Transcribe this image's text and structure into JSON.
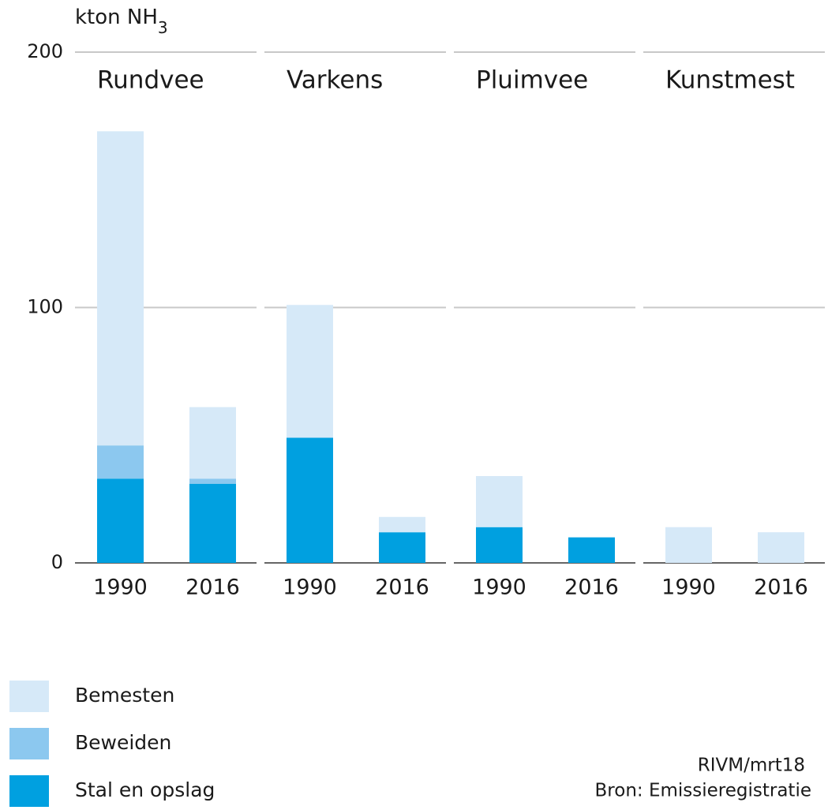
{
  "chart_data": {
    "type": "stacked_bar",
    "y_label": "kton NH",
    "y_label_subscript": "3",
    "groups": [
      "Rundvee",
      "Varkens",
      "Pluimvee",
      "Kunstmest"
    ],
    "categories": [
      "1990",
      "2016",
      "1990",
      "2016",
      "1990",
      "2016",
      "1990",
      "2016"
    ],
    "series": [
      {
        "name": "Bemesten",
        "color": "#d6e9f8",
        "values": [
          123,
          28,
          52,
          6,
          20,
          0,
          14,
          12
        ]
      },
      {
        "name": "Beweiden",
        "color": "#8cc8ef",
        "values": [
          13,
          2,
          0,
          0,
          0,
          0,
          0,
          0
        ]
      },
      {
        "name": "Stal en opslag",
        "color": "#00a0e0",
        "values": [
          33,
          31,
          49,
          12,
          14,
          10,
          0,
          0
        ]
      }
    ],
    "ylim": [
      0,
      200
    ],
    "yticks": [
      0,
      100,
      200
    ],
    "grid": true,
    "credit": "RIVM/mrt18",
    "source": "Bron: Emissieregistratie"
  }
}
